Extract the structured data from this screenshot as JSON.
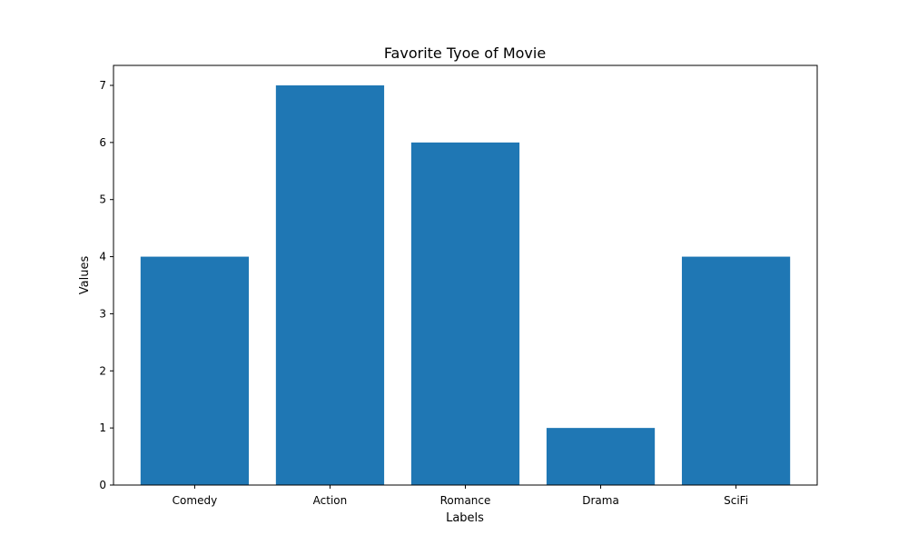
{
  "chart_data": {
    "type": "bar",
    "title": "Favorite Tyoe of Movie",
    "xlabel": "Labels",
    "ylabel": "Values",
    "categories": [
      "Comedy",
      "Action",
      "Romance",
      "Drama",
      "SciFi"
    ],
    "values": [
      4,
      7,
      6,
      1,
      4
    ],
    "ylim": [
      0,
      7.35
    ],
    "yticks": [
      0,
      1,
      2,
      3,
      4,
      5,
      6,
      7
    ],
    "grid": false,
    "legend": "none",
    "bar_color": "#1f77b4"
  }
}
